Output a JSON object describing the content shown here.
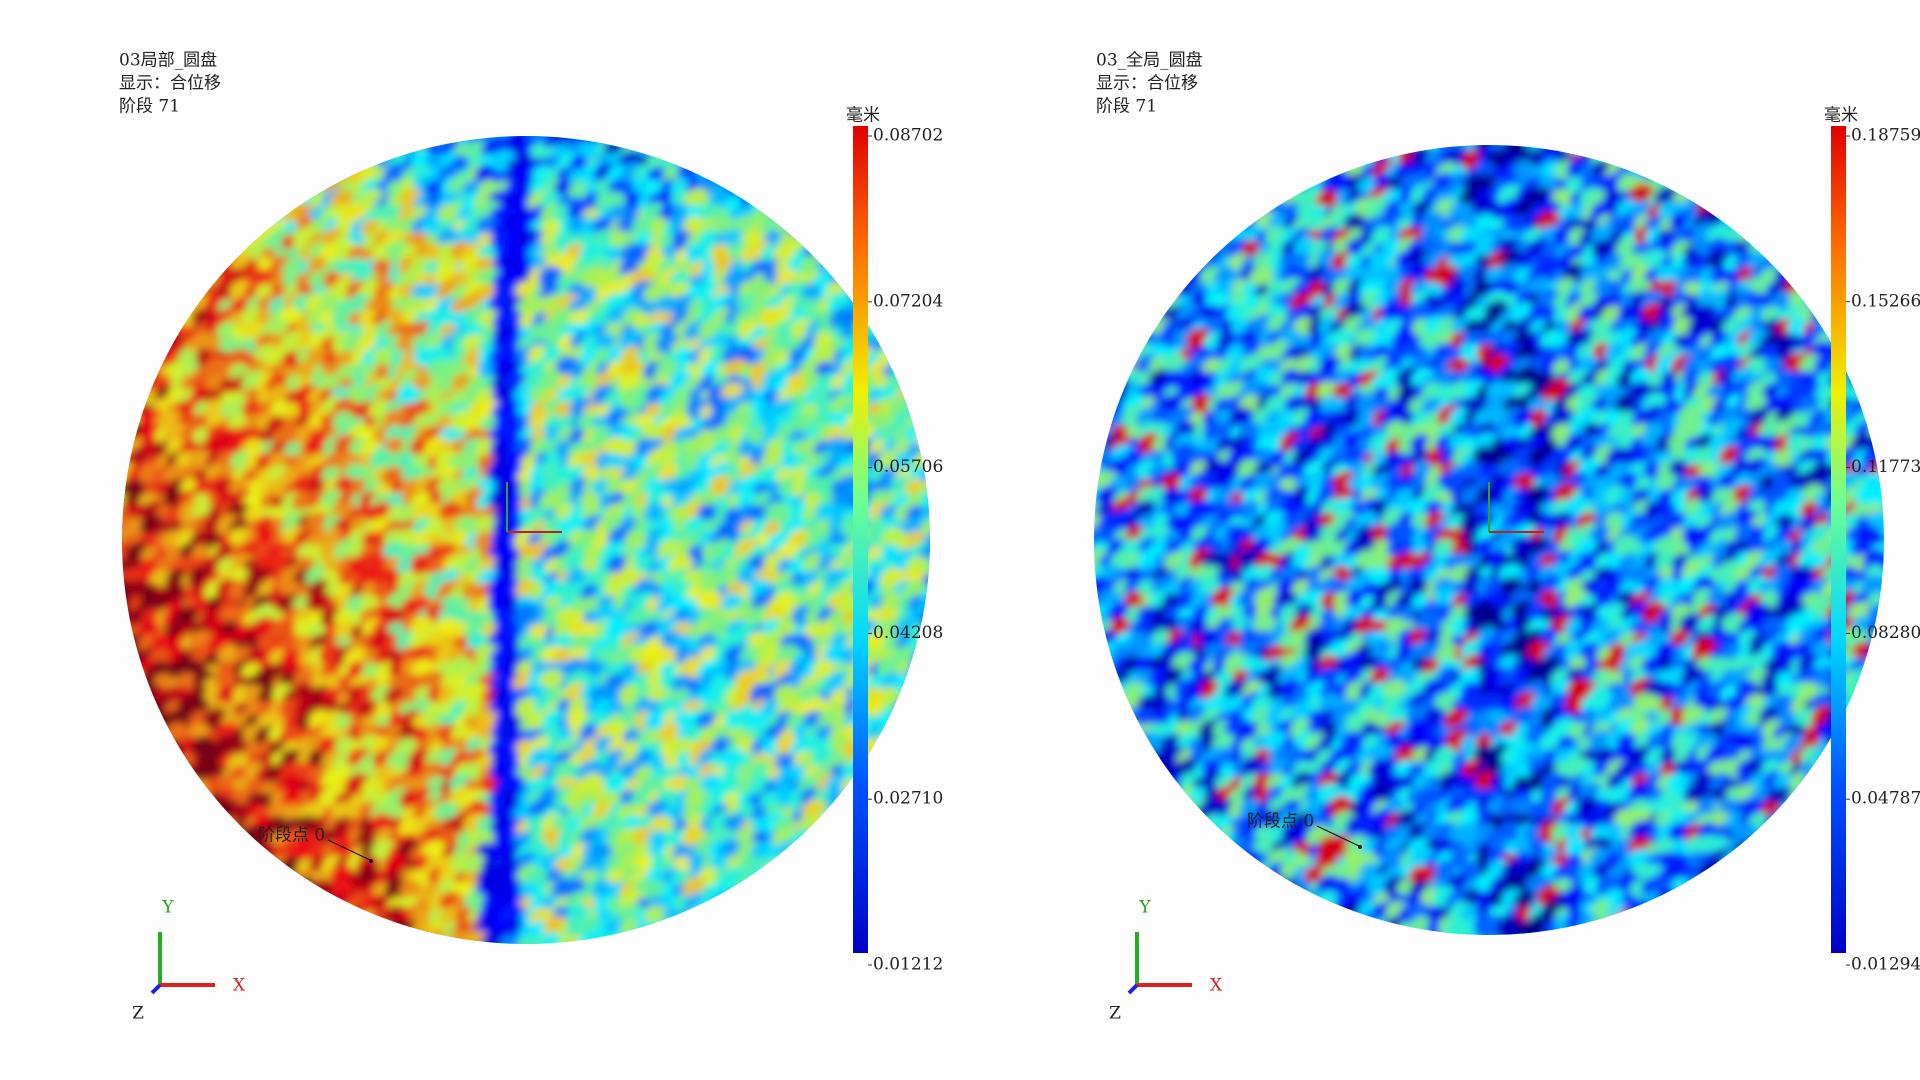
{
  "panels": [
    {
      "title_lines": [
        "03局部_圆盘",
        "显示：合位移",
        "阶段 71"
      ],
      "unit": "毫米",
      "colorbar_ticks": [
        "0.08702",
        "0.07204",
        "0.05706",
        "0.04208",
        "0.02710",
        "0.01212"
      ],
      "point_label": "阶段点 0",
      "axes": {
        "x": "X",
        "y": "Y",
        "z": "Z"
      }
    },
    {
      "title_lines": [
        "03_全局_圆盘",
        "显示：合位移",
        "阶段 71"
      ],
      "unit": "毫米",
      "colorbar_ticks": [
        "0.18759",
        "0.15266",
        "0.11773",
        "0.08280",
        "0.04787",
        "0.01294"
      ],
      "point_label": "阶段点 0",
      "axes": {
        "x": "X",
        "y": "Y",
        "z": "Z"
      }
    }
  ]
}
